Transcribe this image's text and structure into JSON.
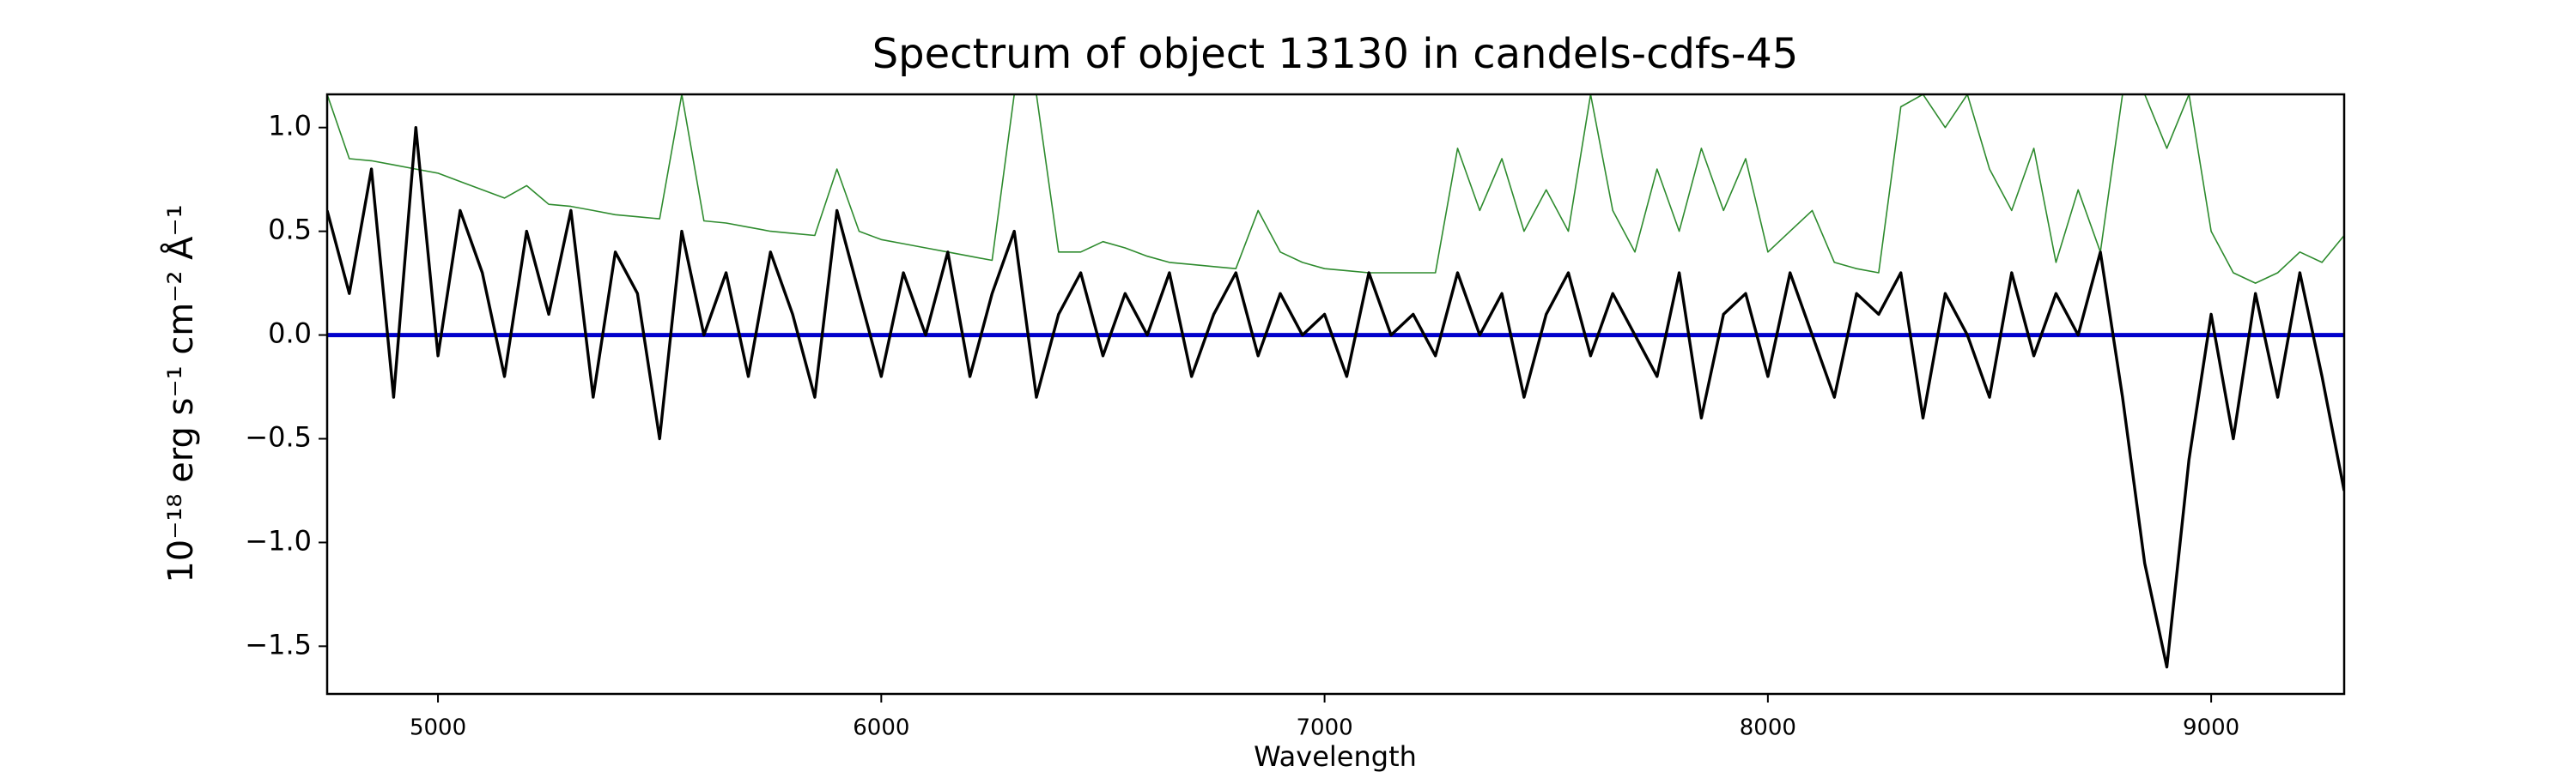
{
  "chart_data": {
    "type": "line",
    "title": "Spectrum of object 13130 in candels-cdfs-45",
    "xlabel": "Wavelength",
    "ylabel": "10⁻¹⁸ erg s⁻¹ cm⁻² Å⁻¹",
    "xlim": [
      4750,
      9300
    ],
    "ylim": [
      -1.73,
      1.16
    ],
    "xticks": [
      5000,
      6000,
      7000,
      8000,
      9000
    ],
    "yticks": [
      {
        "value": -1.5,
        "label": "−1.5"
      },
      {
        "value": -1.0,
        "label": "−1.0"
      },
      {
        "value": -0.5,
        "label": "−0.5"
      },
      {
        "value": 0.0,
        "label": "0.0"
      },
      {
        "value": 0.5,
        "label": "0.5"
      },
      {
        "value": 1.0,
        "label": "1.0"
      }
    ],
    "grid": false,
    "x": [
      4750,
      4800,
      4850,
      4900,
      4950,
      5000,
      5050,
      5100,
      5150,
      5200,
      5250,
      5300,
      5350,
      5400,
      5450,
      5500,
      5550,
      5600,
      5650,
      5700,
      5750,
      5800,
      5850,
      5900,
      5950,
      6000,
      6050,
      6100,
      6150,
      6200,
      6250,
      6300,
      6350,
      6400,
      6450,
      6500,
      6550,
      6600,
      6650,
      6700,
      6750,
      6800,
      6850,
      6900,
      6950,
      7000,
      7050,
      7100,
      7150,
      7200,
      7250,
      7300,
      7350,
      7400,
      7450,
      7500,
      7550,
      7600,
      7650,
      7700,
      7750,
      7800,
      7850,
      7900,
      7950,
      8000,
      8050,
      8100,
      8150,
      8200,
      8250,
      8300,
      8350,
      8400,
      8450,
      8500,
      8550,
      8600,
      8650,
      8700,
      8750,
      8800,
      8850,
      8900,
      8950,
      9000,
      9050,
      9100,
      9150,
      9200,
      9250,
      9300
    ],
    "series": [
      {
        "color": "#2e8b2e",
        "width": 1.6,
        "values": [
          1.16,
          0.85,
          0.84,
          0.82,
          0.8,
          0.78,
          0.74,
          0.7,
          0.66,
          0.72,
          0.63,
          0.62,
          0.6,
          0.58,
          0.57,
          0.56,
          1.16,
          0.55,
          0.54,
          0.52,
          0.5,
          0.49,
          0.48,
          0.8,
          0.5,
          0.46,
          0.44,
          0.42,
          0.4,
          0.38,
          0.36,
          1.16,
          1.16,
          0.4,
          0.4,
          0.45,
          0.42,
          0.38,
          0.35,
          0.34,
          0.33,
          0.32,
          0.6,
          0.4,
          0.35,
          0.32,
          0.31,
          0.3,
          0.3,
          0.3,
          0.3,
          0.9,
          0.6,
          0.85,
          0.5,
          0.7,
          0.5,
          1.16,
          0.6,
          0.4,
          0.8,
          0.5,
          0.9,
          0.6,
          0.85,
          0.4,
          0.5,
          0.6,
          0.35,
          0.32,
          0.3,
          1.1,
          1.16,
          1.0,
          1.16,
          0.8,
          0.6,
          0.9,
          0.35,
          0.7,
          0.4,
          1.16,
          1.16,
          0.9,
          1.16,
          0.5,
          0.3,
          0.25,
          0.3,
          0.4,
          0.35,
          0.48
        ]
      },
      {
        "color": "#0000cc",
        "width": 5,
        "x": [
          4750,
          9300
        ],
        "values": [
          0,
          0
        ]
      },
      {
        "color": "#000000",
        "width": 3.4,
        "values": [
          0.6,
          0.2,
          0.8,
          -0.3,
          1.0,
          -0.1,
          0.6,
          0.3,
          -0.2,
          0.5,
          0.1,
          0.6,
          -0.3,
          0.4,
          0.2,
          -0.5,
          0.5,
          0.0,
          0.3,
          -0.2,
          0.4,
          0.1,
          -0.3,
          0.6,
          0.2,
          -0.2,
          0.3,
          0.0,
          0.4,
          -0.2,
          0.2,
          0.5,
          -0.3,
          0.1,
          0.3,
          -0.1,
          0.2,
          0.0,
          0.3,
          -0.2,
          0.1,
          0.3,
          -0.1,
          0.2,
          0.0,
          0.1,
          -0.2,
          0.3,
          0.0,
          0.1,
          -0.1,
          0.3,
          0.0,
          0.2,
          -0.3,
          0.1,
          0.3,
          -0.1,
          0.2,
          0.0,
          -0.2,
          0.3,
          -0.4,
          0.1,
          0.2,
          -0.2,
          0.3,
          0.0,
          -0.3,
          0.2,
          0.1,
          0.3,
          -0.4,
          0.2,
          0.0,
          -0.3,
          0.3,
          -0.1,
          0.2,
          0.0,
          0.4,
          -0.3,
          -1.1,
          -1.6,
          -0.6,
          0.1,
          -0.5,
          0.2,
          -0.3,
          0.3,
          -0.2,
          -0.75
        ]
      }
    ]
  }
}
